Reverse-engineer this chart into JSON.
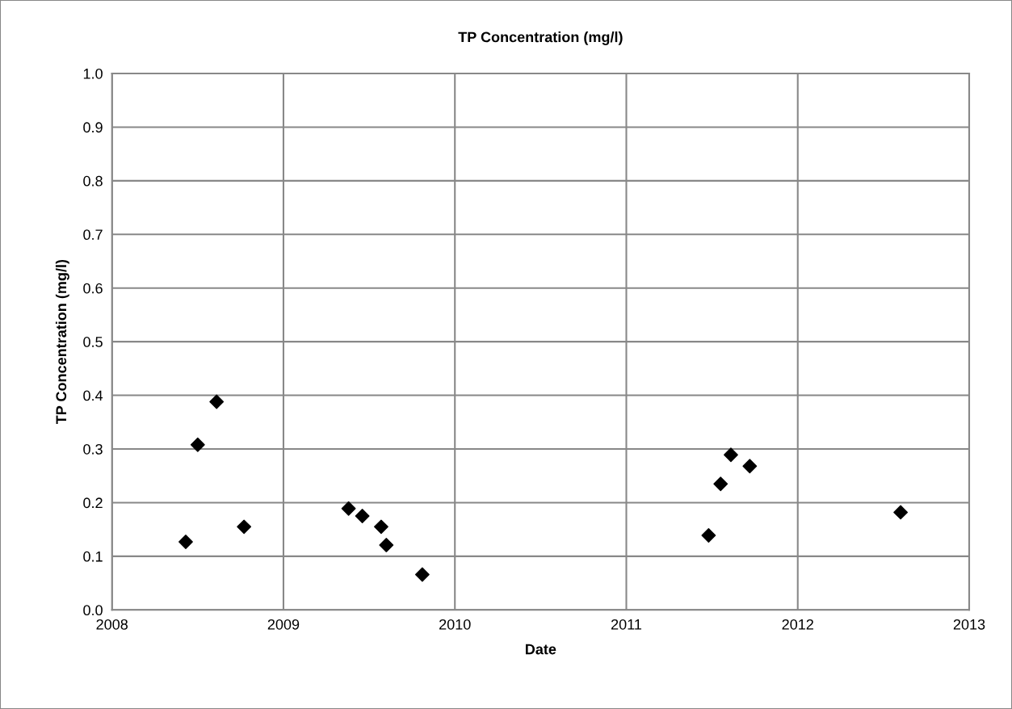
{
  "chart_data": {
    "type": "scatter",
    "title": "TP Concentration (mg/l)",
    "xlabel": "Date",
    "ylabel": "TP Concentration (mg/l)",
    "series": [
      {
        "color": "#000000",
        "x": [
          2008.43,
          2008.5,
          2008.61,
          2008.77,
          2009.38,
          2009.46,
          2009.57,
          2009.6,
          2009.81,
          2011.48,
          2011.55,
          2011.61,
          2011.72,
          2012.6
        ],
        "values": [
          0.127,
          0.308,
          0.388,
          0.155,
          0.189,
          0.175,
          0.155,
          0.121,
          0.066,
          0.139,
          0.235,
          0.289,
          0.268,
          0.182
        ]
      }
    ],
    "xlim": [
      2008,
      2013
    ],
    "xticks": [
      2008,
      2009,
      2010,
      2011,
      2012,
      2013
    ],
    "ylim": [
      0,
      1.0
    ],
    "yticks": [
      {
        "value": 0,
        "label": "0.0"
      },
      {
        "value": 0.1,
        "label": "0.1"
      },
      {
        "value": 0.2,
        "label": "0.2"
      },
      {
        "value": 0.3,
        "label": "0.3"
      },
      {
        "value": 0.4,
        "label": "0.4"
      },
      {
        "value": 0.5,
        "label": "0.5"
      },
      {
        "value": 0.6,
        "label": "0.6"
      },
      {
        "value": 0.7,
        "label": "0.7"
      },
      {
        "value": 0.8,
        "label": "0.8"
      },
      {
        "value": 0.9,
        "label": "0.9"
      },
      {
        "value": 1.0,
        "label": "1.0"
      }
    ],
    "grid": true,
    "marker": "diamond",
    "legend": false
  }
}
